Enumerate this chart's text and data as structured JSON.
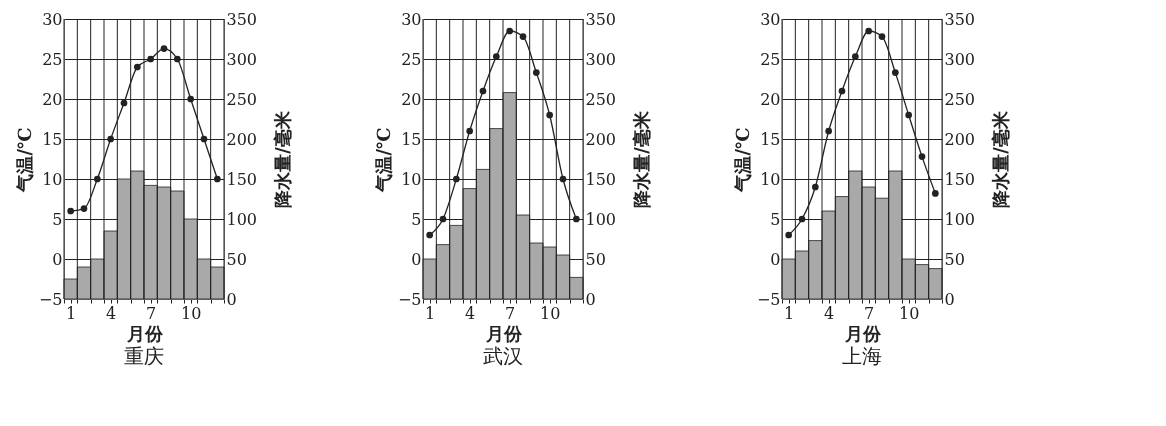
{
  "chart_data": [
    {
      "type": "bar",
      "title": "重庆",
      "xlabel": "月份",
      "ylabel": "气温/℃",
      "y2label": "降水量/毫米",
      "x": [
        1,
        2,
        3,
        4,
        5,
        6,
        7,
        8,
        9,
        10,
        11,
        12
      ],
      "series": [
        {
          "type": "bar",
          "axis": "y2",
          "color": "#a9a9a9",
          "values": [
            25,
            40,
            50,
            85,
            150,
            160,
            142,
            140,
            135,
            100,
            50,
            40
          ]
        },
        {
          "type": "line",
          "color": "#222222",
          "values": [
            6,
            6.3,
            10,
            15,
            19.5,
            24,
            25,
            26.3,
            25,
            20,
            15,
            10
          ]
        }
      ],
      "xlim": [
        0.5,
        12.5
      ],
      "xticks": [
        {
          "value": 0.5,
          "label": null
        },
        1,
        {
          "value": 1.5,
          "label": null
        },
        {
          "value": 2.5,
          "label": null
        },
        {
          "value": 3.5,
          "label": null
        },
        4,
        {
          "value": 4.5,
          "label": null
        },
        {
          "value": 5.5,
          "label": null
        },
        {
          "value": 6.5,
          "label": null
        },
        7,
        {
          "value": 7.5,
          "label": null
        },
        {
          "value": 8.5,
          "label": null
        },
        {
          "value": 9.5,
          "label": null
        },
        10,
        {
          "value": 10.5,
          "label": null
        },
        {
          "value": 11.5,
          "label": null
        },
        {
          "value": 12.5,
          "label": null
        }
      ],
      "ylim": [
        -5,
        30
      ],
      "yticks": [
        -5,
        0,
        5,
        10,
        15,
        20,
        25,
        30
      ],
      "y2lim": [
        0,
        350
      ],
      "y2ticks": [
        0,
        50,
        100,
        150,
        200,
        250,
        300,
        350
      ],
      "grid": true,
      "marker": "circle"
    },
    {
      "type": "bar",
      "title": "武汉",
      "xlabel": "月份",
      "ylabel": "气温/℃",
      "y2label": "降水量/毫米",
      "x": [
        1,
        2,
        3,
        4,
        5,
        6,
        7,
        8,
        9,
        10,
        11,
        12
      ],
      "series": [
        {
          "type": "bar",
          "axis": "y2",
          "color": "#a9a9a9",
          "values": [
            50,
            68,
            92,
            138,
            162,
            213,
            258,
            105,
            70,
            65,
            55,
            27
          ]
        },
        {
          "type": "line",
          "color": "#222222",
          "values": [
            3,
            5,
            10,
            16,
            21,
            25.3,
            28.5,
            27.8,
            23.3,
            18,
            10,
            5
          ]
        }
      ],
      "xlim": [
        0.5,
        12.5
      ],
      "xticks": [
        {
          "value": 0.5,
          "label": null
        },
        1,
        {
          "value": 1.5,
          "label": null
        },
        {
          "value": 2.5,
          "label": null
        },
        {
          "value": 3.5,
          "label": null
        },
        4,
        {
          "value": 4.5,
          "label": null
        },
        {
          "value": 5.5,
          "label": null
        },
        {
          "value": 6.5,
          "label": null
        },
        7,
        {
          "value": 7.5,
          "label": null
        },
        {
          "value": 8.5,
          "label": null
        },
        {
          "value": 9.5,
          "label": null
        },
        10,
        {
          "value": 10.5,
          "label": null
        },
        {
          "value": 11.5,
          "label": null
        },
        {
          "value": 12.5,
          "label": null
        }
      ],
      "ylim": [
        -5,
        30
      ],
      "yticks": [
        -5,
        0,
        5,
        10,
        15,
        20,
        25,
        30
      ],
      "y2lim": [
        0,
        350
      ],
      "y2ticks": [
        0,
        50,
        100,
        150,
        200,
        250,
        300,
        350
      ],
      "grid": true,
      "marker": "circle"
    },
    {
      "type": "bar",
      "title": "上海",
      "xlabel": "月份",
      "ylabel": "气温/℃",
      "y2label": "降水量/毫米",
      "x": [
        1,
        2,
        3,
        4,
        5,
        6,
        7,
        8,
        9,
        10,
        11,
        12
      ],
      "series": [
        {
          "type": "bar",
          "axis": "y2",
          "color": "#a9a9a9",
          "values": [
            50,
            60,
            73,
            110,
            128,
            160,
            140,
            126,
            160,
            50,
            43,
            38
          ]
        },
        {
          "type": "line",
          "color": "#222222",
          "values": [
            3,
            5,
            9,
            16,
            21,
            25.3,
            28.5,
            27.8,
            23.3,
            18,
            12.8,
            8.2
          ]
        }
      ],
      "xlim": [
        0.5,
        12.5
      ],
      "xticks": [
        {
          "value": 0.5,
          "label": null
        },
        1,
        {
          "value": 1.5,
          "label": null
        },
        {
          "value": 2.5,
          "label": null
        },
        {
          "value": 3.5,
          "label": null
        },
        4,
        {
          "value": 4.5,
          "label": null
        },
        {
          "value": 5.5,
          "label": null
        },
        {
          "value": 6.5,
          "label": null
        },
        7,
        {
          "value": 7.5,
          "label": null
        },
        {
          "value": 8.5,
          "label": null
        },
        {
          "value": 9.5,
          "label": null
        },
        10,
        {
          "value": 10.5,
          "label": null
        },
        {
          "value": 11.5,
          "label": null
        },
        {
          "value": 12.5,
          "label": null
        }
      ],
      "ylim": [
        -5,
        30
      ],
      "yticks": [
        -5,
        0,
        5,
        10,
        15,
        20,
        25,
        30
      ],
      "y2lim": [
        0,
        350
      ],
      "y2ticks": [
        0,
        50,
        100,
        150,
        200,
        250,
        300,
        350
      ],
      "grid": true,
      "marker": "circle"
    }
  ]
}
